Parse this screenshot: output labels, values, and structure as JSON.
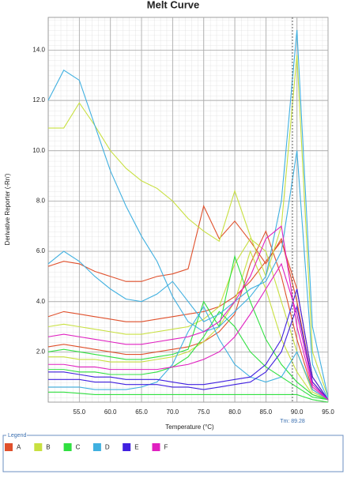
{
  "chart_data": {
    "type": "line",
    "title": "Melt Curve",
    "x_label": "Temperature (°C)",
    "y_label": "Derivative Reporter (-Rn')",
    "legend_title": "Legend",
    "annotation": {
      "label": "Tm: 89.28",
      "value": 89.28
    },
    "x": [
      50,
      52.5,
      55,
      57.5,
      60,
      62.5,
      65,
      67.5,
      70,
      72.5,
      75,
      77.5,
      80,
      82.5,
      85,
      87.5,
      90,
      92.5,
      95
    ],
    "xlim": [
      50,
      95
    ],
    "xticks": [
      {
        "value": 55,
        "label": "55.0"
      },
      {
        "value": 60,
        "label": "60.0"
      },
      {
        "value": 65,
        "label": "65.0"
      },
      {
        "value": 70,
        "label": "70.0"
      },
      {
        "value": 75,
        "label": "75.0"
      },
      {
        "value": 80,
        "label": "80.0"
      },
      {
        "value": 85,
        "label": "85.0"
      },
      {
        "value": 90,
        "label": "90.0"
      },
      {
        "value": 95,
        "label": "95.0"
      }
    ],
    "ylim": [
      0,
      15.3
    ],
    "yticks": [
      {
        "value": 2,
        "label": "2.0"
      },
      {
        "value": 4,
        "label": "4.0"
      },
      {
        "value": 6,
        "label": "6.0"
      },
      {
        "value": 8,
        "label": "8.0"
      },
      {
        "value": 10,
        "label": "10.0"
      },
      {
        "value": 12,
        "label": "12.0"
      },
      {
        "value": 14,
        "label": "14.0"
      }
    ],
    "grid": true,
    "series": [
      {
        "name": "A",
        "color": "#e0502c",
        "curves": [
          [
            5.4,
            5.6,
            5.5,
            5.2,
            5.0,
            4.8,
            4.8,
            5.0,
            5.1,
            5.3,
            7.8,
            6.5,
            7.2,
            6.4,
            5.5,
            6.5,
            4.0,
            0.8,
            0.1
          ],
          [
            3.4,
            3.6,
            3.5,
            3.4,
            3.3,
            3.2,
            3.2,
            3.3,
            3.4,
            3.5,
            3.6,
            3.8,
            4.2,
            4.8,
            5.6,
            6.4,
            4.5,
            1.0,
            0.1
          ],
          [
            2.2,
            2.3,
            2.2,
            2.1,
            2.0,
            1.9,
            1.9,
            2.0,
            2.1,
            2.2,
            2.4,
            2.8,
            3.5,
            5.5,
            6.8,
            5.0,
            2.5,
            0.5,
            0.1
          ]
        ]
      },
      {
        "name": "B",
        "color": "#c8e040",
        "curves": [
          [
            10.9,
            10.9,
            11.9,
            11.0,
            10.0,
            9.3,
            8.8,
            8.5,
            8.0,
            7.3,
            6.8,
            6.4,
            8.4,
            6.6,
            5.0,
            7.0,
            13.8,
            2.0,
            0.2
          ],
          [
            3.0,
            3.1,
            3.0,
            2.9,
            2.8,
            2.7,
            2.7,
            2.8,
            2.9,
            3.0,
            3.3,
            3.8,
            5.5,
            6.5,
            6.0,
            4.0,
            2.0,
            0.4,
            0.1
          ],
          [
            1.8,
            1.8,
            1.7,
            1.7,
            1.6,
            1.6,
            1.6,
            1.7,
            1.8,
            2.0,
            2.4,
            3.0,
            4.0,
            6.0,
            4.5,
            2.5,
            1.2,
            0.3,
            0.1
          ]
        ]
      },
      {
        "name": "C",
        "color": "#30e040",
        "curves": [
          [
            2.0,
            2.1,
            2.0,
            1.9,
            1.8,
            1.7,
            1.7,
            1.8,
            1.9,
            2.1,
            4.0,
            3.0,
            5.8,
            4.0,
            2.5,
            1.5,
            0.8,
            0.3,
            0.1
          ],
          [
            0.4,
            0.4,
            0.35,
            0.3,
            0.3,
            0.3,
            0.3,
            0.3,
            0.3,
            0.3,
            0.3,
            0.3,
            0.3,
            0.3,
            0.3,
            0.3,
            0.3,
            0.1,
            0.0
          ],
          [
            1.3,
            1.3,
            1.2,
            1.2,
            1.1,
            1.1,
            1.1,
            1.2,
            1.4,
            1.8,
            2.6,
            3.6,
            3.0,
            2.0,
            1.4,
            1.0,
            0.6,
            0.2,
            0.1
          ]
        ]
      },
      {
        "name": "D",
        "color": "#40b0e0",
        "curves": [
          [
            12.0,
            13.2,
            12.8,
            11.0,
            9.2,
            7.8,
            6.6,
            5.6,
            4.2,
            3.2,
            2.8,
            3.0,
            3.6,
            4.2,
            5.0,
            8.0,
            14.8,
            3.0,
            0.2
          ],
          [
            5.5,
            6.0,
            5.6,
            5.0,
            4.5,
            4.1,
            4.0,
            4.3,
            4.8,
            4.0,
            3.2,
            3.5,
            4.0,
            4.5,
            4.8,
            6.0,
            10.0,
            1.5,
            0.1
          ],
          [
            0.6,
            0.6,
            0.6,
            0.5,
            0.5,
            0.5,
            0.6,
            0.8,
            1.5,
            2.8,
            3.8,
            2.5,
            1.5,
            1.0,
            0.8,
            1.0,
            2.0,
            0.5,
            0.1
          ]
        ]
      },
      {
        "name": "E",
        "color": "#4020e0",
        "curves": [
          [
            1.2,
            1.2,
            1.1,
            1.0,
            1.0,
            0.9,
            0.9,
            0.9,
            0.8,
            0.7,
            0.7,
            0.8,
            0.9,
            1.0,
            1.5,
            2.5,
            4.5,
            1.0,
            0.1
          ],
          [
            0.9,
            0.9,
            0.9,
            0.8,
            0.8,
            0.7,
            0.7,
            0.7,
            0.6,
            0.6,
            0.5,
            0.6,
            0.7,
            0.8,
            1.2,
            2.0,
            3.8,
            0.8,
            0.1
          ]
        ]
      },
      {
        "name": "F",
        "color": "#e020c0",
        "curves": [
          [
            2.6,
            2.7,
            2.6,
            2.5,
            2.4,
            2.3,
            2.3,
            2.4,
            2.5,
            2.6,
            2.8,
            3.2,
            4.0,
            5.0,
            6.5,
            7.0,
            3.0,
            0.6,
            0.1
          ],
          [
            1.5,
            1.5,
            1.4,
            1.4,
            1.3,
            1.3,
            1.3,
            1.3,
            1.4,
            1.5,
            1.7,
            2.0,
            2.6,
            3.5,
            4.5,
            5.5,
            3.5,
            0.7,
            0.1
          ]
        ]
      }
    ]
  }
}
